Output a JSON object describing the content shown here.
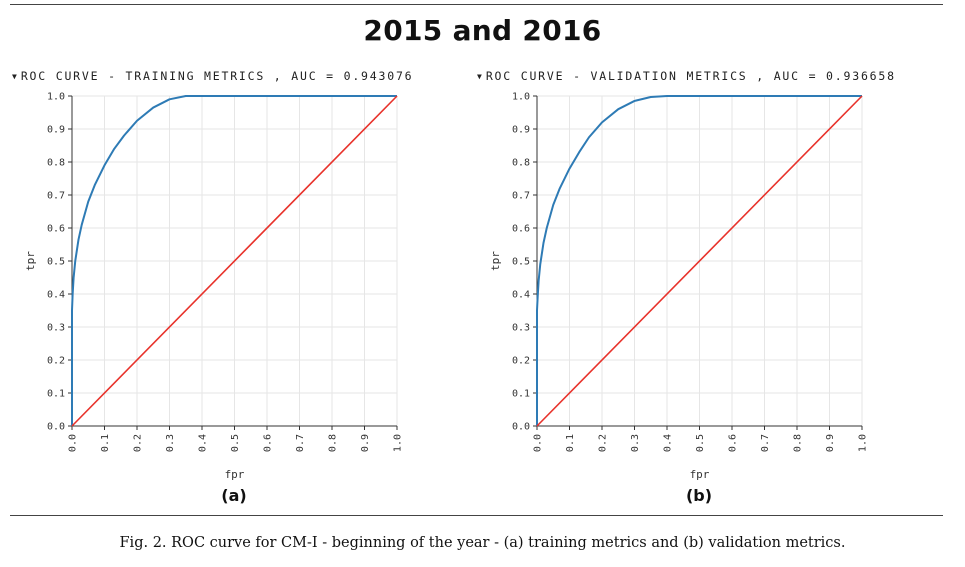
{
  "main_title": "2015 and 2016",
  "caption": "Fig. 2.  ROC curve for CM-I - beginning of the year - (a) training metrics and (b) validation metrics.",
  "colors": {
    "roc_curve": "#2e7bb5",
    "baseline": "#e8322b",
    "grid": "#e6e6e6",
    "axis": "#333333"
  },
  "chart_data": [
    {
      "type": "line",
      "title": "ROC CURVE - TRAINING METRICS , AUC = 0.943076",
      "panel_label": "(a)",
      "xlabel": "fpr",
      "ylabel": "tpr",
      "xlim": [
        0,
        1
      ],
      "ylim": [
        0,
        1
      ],
      "grid": true,
      "x_ticks": [
        "0.0",
        "0.1",
        "0.2",
        "0.3",
        "0.4",
        "0.5",
        "0.6",
        "0.7",
        "0.8",
        "0.9",
        "1.0"
      ],
      "y_ticks": [
        "0.0",
        "0.1",
        "0.2",
        "0.3",
        "0.4",
        "0.5",
        "0.6",
        "0.7",
        "0.8",
        "0.9",
        "1.0"
      ],
      "series": [
        {
          "color": "#2e7bb5",
          "x": [
            0,
            0,
            0.002,
            0.005,
            0.01,
            0.02,
            0.03,
            0.05,
            0.07,
            0.1,
            0.13,
            0.16,
            0.2,
            0.25,
            0.3,
            0.35,
            0.4,
            0.5,
            0.6,
            0.7,
            0.8,
            0.9,
            1.0
          ],
          "y": [
            0,
            0.35,
            0.4,
            0.45,
            0.5,
            0.565,
            0.61,
            0.68,
            0.73,
            0.79,
            0.84,
            0.88,
            0.925,
            0.965,
            0.99,
            1.0,
            1.0,
            1.0,
            1.0,
            1.0,
            1.0,
            1.0,
            1.0
          ]
        },
        {
          "color": "#e8322b",
          "x": [
            0,
            1
          ],
          "y": [
            0,
            1
          ]
        }
      ]
    },
    {
      "type": "line",
      "title": "ROC CURVE - VALIDATION METRICS , AUC = 0.936658",
      "panel_label": "(b)",
      "xlabel": "fpr",
      "ylabel": "tpr",
      "xlim": [
        0,
        1
      ],
      "ylim": [
        0,
        1
      ],
      "grid": true,
      "x_ticks": [
        "0.0",
        "0.1",
        "0.2",
        "0.3",
        "0.4",
        "0.5",
        "0.6",
        "0.7",
        "0.8",
        "0.9",
        "1.0"
      ],
      "y_ticks": [
        "0.0",
        "0.1",
        "0.2",
        "0.3",
        "0.4",
        "0.5",
        "0.6",
        "0.7",
        "0.8",
        "0.9",
        "1.0"
      ],
      "series": [
        {
          "color": "#2e7bb5",
          "x": [
            0,
            0,
            0.002,
            0.005,
            0.01,
            0.02,
            0.03,
            0.05,
            0.07,
            0.1,
            0.13,
            0.16,
            0.2,
            0.25,
            0.3,
            0.35,
            0.4,
            0.5,
            0.6,
            0.7,
            0.8,
            0.9,
            1.0
          ],
          "y": [
            0,
            0.35,
            0.39,
            0.44,
            0.49,
            0.555,
            0.6,
            0.67,
            0.72,
            0.78,
            0.83,
            0.875,
            0.92,
            0.96,
            0.985,
            0.997,
            1.0,
            1.0,
            1.0,
            1.0,
            1.0,
            1.0,
            1.0
          ]
        },
        {
          "color": "#e8322b",
          "x": [
            0,
            1
          ],
          "y": [
            0,
            1
          ]
        }
      ]
    }
  ]
}
